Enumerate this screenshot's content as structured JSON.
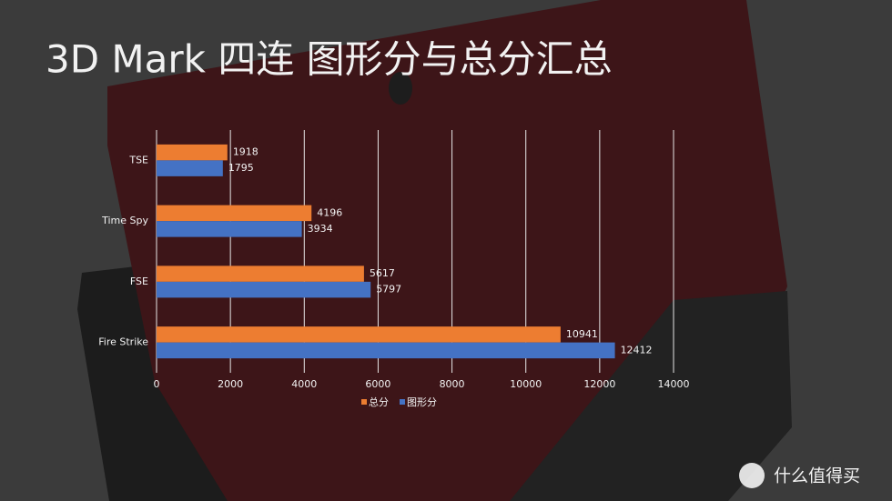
{
  "chart_data": {
    "type": "hbar",
    "title": "3D Mark 四连 图形分与总分汇总",
    "categories": [
      "TSE",
      "Time Spy",
      "FSE",
      "Fire Strike"
    ],
    "series": [
      {
        "name": "总分",
        "color": "#ed7d31",
        "values": [
          1918,
          4196,
          5617,
          10941
        ]
      },
      {
        "name": "图形分",
        "color": "#4472c4",
        "values": [
          1795,
          3934,
          5797,
          12412
        ]
      }
    ],
    "xlim": [
      0,
      14000
    ],
    "xticks": [
      0,
      2000,
      4000,
      6000,
      8000,
      10000,
      12000,
      14000
    ],
    "grid": true,
    "legend": "bottom"
  },
  "watermark": "什么值得买"
}
